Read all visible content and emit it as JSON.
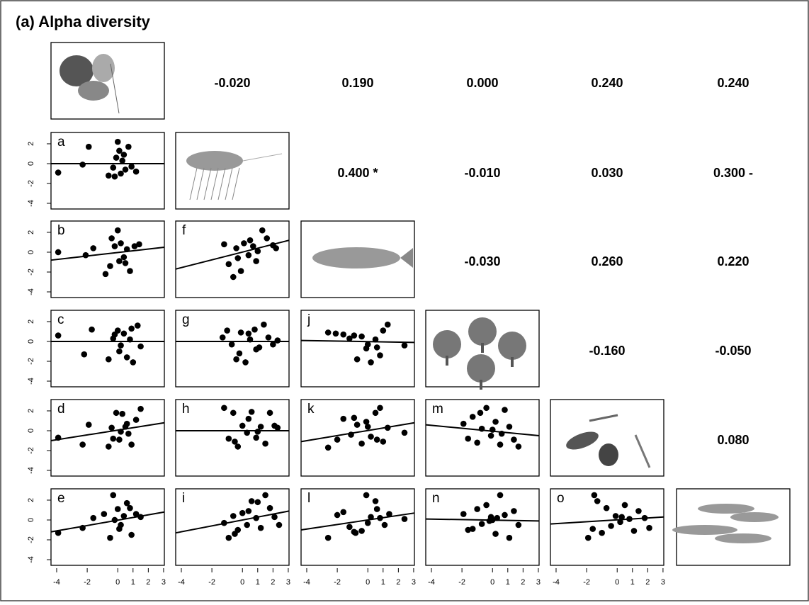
{
  "chart_data": {
    "type": "scatter",
    "title": "(a) Alpha diversity",
    "xlim": [
      -4.37,
      3.05
    ],
    "ylim": [
      -4.57,
      3.14
    ],
    "xticks": [
      -4,
      -2,
      0,
      1,
      2,
      3
    ],
    "yticks": [
      -4,
      -2,
      0,
      2
    ],
    "correlations": [
      -0.02,
      0.19,
      0.0,
      0.24,
      0.24,
      0.4,
      -0.01,
      0.03,
      0.3,
      -0.03,
      0.26,
      0.22,
      -0.16,
      -0.05,
      0.08
    ],
    "value_labels": [
      "-0.020",
      "0.190",
      "0.000",
      "0.240",
      "0.240",
      "0.400 *",
      "-0.010",
      "0.030",
      "0.300 -",
      "-0.030",
      "0.260",
      "0.220",
      "-0.160",
      "-0.050",
      "0.080"
    ],
    "panels": [
      {
        "label": "a",
        "x": [
          -3.9,
          -2.3,
          -1.9,
          -0.6,
          -0.3,
          -0.1,
          0,
          0.1,
          0.2,
          0.3,
          0.5,
          0.7,
          0.9,
          1.2,
          0.4,
          -0.2
        ],
        "y": [
          -0.9,
          -0.1,
          1.7,
          -1.2,
          -0.4,
          0.6,
          2.2,
          1.3,
          -1,
          0.3,
          -0.6,
          1.7,
          -0.3,
          -0.8,
          0.9,
          -1.3
        ],
        "fit": [
          0,
          0
        ]
      },
      {
        "label": "b",
        "x": [
          -3.9,
          -2.1,
          -1.6,
          -0.8,
          -0.5,
          -0.2,
          0,
          0.2,
          0.4,
          0.6,
          0.8,
          1.1,
          1.4,
          0.1,
          -0.4,
          0.5
        ],
        "y": [
          0,
          -0.3,
          0.4,
          -2.2,
          -1.4,
          0.6,
          2.2,
          0.9,
          -0.5,
          0.3,
          -1.9,
          0.6,
          0.8,
          -0.9,
          1.4,
          -1.1
        ],
        "fit": [
          -0.8,
          0.5
        ]
      },
      {
        "label": "c",
        "x": [
          -3.9,
          -2.2,
          -1.7,
          -0.6,
          -0.3,
          0,
          0.2,
          0.4,
          0.6,
          0.8,
          1,
          1.3,
          1.5,
          0.1,
          -0.2,
          0.9
        ],
        "y": [
          0.6,
          -1.3,
          1.2,
          -1.8,
          0.3,
          1.1,
          -0.4,
          0.8,
          -1.6,
          0.2,
          -2.1,
          1.6,
          -0.5,
          -1,
          0.7,
          1.3
        ],
        "fit": [
          0,
          0
        ]
      },
      {
        "label": "d",
        "x": [
          -3.9,
          -2.3,
          -1.9,
          -0.6,
          -0.4,
          -0.1,
          0.1,
          0.3,
          0.5,
          0.7,
          0.9,
          1.2,
          1.5,
          0.2,
          -0.3,
          0.6
        ],
        "y": [
          -0.7,
          -1.4,
          0.6,
          -1.6,
          0.3,
          1.8,
          -0.9,
          1.7,
          0.4,
          -0.3,
          -1.4,
          1.1,
          2.2,
          -0.1,
          -0.8,
          0.7
        ],
        "fit": [
          -1.0,
          0.8
        ]
      },
      {
        "label": "e",
        "x": [
          -3.9,
          -2.3,
          -1.6,
          -0.9,
          -0.5,
          -0.3,
          0,
          0.2,
          0.4,
          0.6,
          0.9,
          1.2,
          1.5,
          0.1,
          -0.2,
          0.8
        ],
        "y": [
          -1.3,
          -0.8,
          0.2,
          0.6,
          -1.8,
          2.5,
          1.1,
          -0.5,
          0.4,
          1.7,
          -1.5,
          0.6,
          0.3,
          -0.9,
          0,
          1.2
        ],
        "fit": [
          -1.2,
          0.8
        ]
      },
      {
        "label": "f",
        "x": [
          -1.2,
          -0.9,
          -0.6,
          -0.4,
          -0.1,
          0.1,
          0.4,
          0.7,
          1,
          1.3,
          1.6,
          2,
          2.2,
          -0.3,
          0.5,
          0.9
        ],
        "y": [
          0.8,
          -1.2,
          -2.5,
          0.4,
          -1.9,
          0.9,
          -0.3,
          0.6,
          0.1,
          2.2,
          1.4,
          0.7,
          0.4,
          -0.6,
          1.2,
          -0.9
        ],
        "fit": [
          -1.7,
          1.2
        ]
      },
      {
        "label": "g",
        "x": [
          -1.3,
          -1,
          -0.7,
          -0.4,
          -0.1,
          0.2,
          0.5,
          0.8,
          1.1,
          1.4,
          1.7,
          2,
          2.3,
          -0.2,
          0.4,
          0.9
        ],
        "y": [
          0.4,
          1.1,
          -0.3,
          -1.8,
          0.9,
          -2.1,
          0.2,
          1.2,
          -0.6,
          1.7,
          0.4,
          -0.3,
          0.1,
          -1.2,
          0.8,
          -0.8
        ],
        "fit": [
          0,
          0
        ]
      },
      {
        "label": "h",
        "x": [
          -1.2,
          -0.9,
          -0.6,
          -0.3,
          0,
          0.3,
          0.6,
          0.9,
          1.2,
          1.5,
          1.8,
          2.1,
          2.3,
          -0.5,
          0.4,
          1
        ],
        "y": [
          2.3,
          -0.8,
          1.8,
          -1.6,
          0.5,
          -0.2,
          1.9,
          -0.7,
          0.4,
          -1.3,
          1.8,
          0.5,
          0.3,
          -1.1,
          1.2,
          -0.1
        ],
        "fit": [
          0,
          0
        ]
      },
      {
        "label": "i",
        "x": [
          -1.2,
          -0.9,
          -0.6,
          -0.3,
          0,
          0.3,
          0.6,
          0.9,
          1.2,
          1.5,
          1.8,
          2.1,
          2.4,
          -0.5,
          0.4,
          1
        ],
        "y": [
          -0.3,
          -1.8,
          0.4,
          -1,
          0.7,
          -0.5,
          1.9,
          0.2,
          -0.8,
          2.5,
          1.2,
          0.3,
          -0.5,
          -1.4,
          0.9,
          1.8
        ],
        "fit": [
          -1.3,
          0.9
        ]
      },
      {
        "label": "j",
        "x": [
          -2.6,
          -2.1,
          -1.6,
          -1.2,
          -0.7,
          -0.4,
          -0.1,
          0.2,
          0.5,
          0.8,
          1,
          1.3,
          2.4,
          0,
          0.6,
          -0.9
        ],
        "y": [
          0.9,
          0.8,
          0.7,
          0.3,
          -1.8,
          0.5,
          -0.7,
          -2.1,
          0.2,
          -1.4,
          1.1,
          1.7,
          -0.4,
          -0.3,
          -0.6,
          0.6
        ],
        "fit": [
          0.1,
          -0.1
        ]
      },
      {
        "label": "k",
        "x": [
          -2.6,
          -2,
          -1.6,
          -1.1,
          -0.7,
          -0.4,
          -0.1,
          0.2,
          0.5,
          0.8,
          1,
          1.3,
          2.4,
          0,
          0.6,
          -0.9
        ],
        "y": [
          -1.7,
          -0.9,
          1.2,
          -0.4,
          0.6,
          -1.3,
          0.9,
          -0.6,
          1.8,
          2.3,
          -1.1,
          0.3,
          -0.2,
          0.4,
          -0.9,
          1.3
        ],
        "fit": [
          -1.1,
          0.8
        ]
      },
      {
        "label": "l",
        "x": [
          -2.6,
          -2,
          -1.6,
          -1.2,
          -0.8,
          -0.4,
          -0.1,
          0.2,
          0.5,
          0.8,
          1.1,
          1.4,
          2.4,
          0,
          0.6,
          -0.9
        ],
        "y": [
          -1.8,
          0.5,
          0.8,
          -0.7,
          -1.3,
          -1.1,
          2.5,
          0.3,
          1.9,
          0.2,
          -0.5,
          0.6,
          0.1,
          -0.3,
          1.1,
          -1.2
        ],
        "fit": [
          -1.0,
          0.7
        ]
      },
      {
        "label": "m",
        "x": [
          -1.9,
          -1.6,
          -1.3,
          -1,
          -0.7,
          -0.4,
          -0.1,
          0.2,
          0.5,
          0.8,
          1.1,
          1.4,
          1.7,
          0,
          0.6,
          -0.8
        ],
        "y": [
          0.7,
          -0.8,
          1.4,
          -1.2,
          0.2,
          2.3,
          -0.5,
          0.9,
          -1.4,
          2.1,
          0.4,
          -0.9,
          -1.6,
          0.1,
          -0.3,
          1.8
        ],
        "fit": [
          0.6,
          -0.5
        ]
      },
      {
        "label": "n",
        "x": [
          -1.9,
          -1.6,
          -1.3,
          -1,
          -0.7,
          -0.4,
          -0.1,
          0.2,
          0.5,
          0.8,
          1.1,
          1.4,
          1.7,
          0,
          0.3,
          -0.2
        ],
        "y": [
          0.6,
          -1,
          -0.9,
          1.1,
          -0.4,
          1.5,
          0.3,
          -1.4,
          2.5,
          0.5,
          -1.8,
          0.9,
          -0.5,
          0,
          0.2,
          -0.1
        ],
        "fit": [
          0.1,
          -0.1
        ]
      },
      {
        "label": "o",
        "x": [
          -1.9,
          -1.6,
          -1.3,
          -1,
          -0.7,
          -0.4,
          -0.1,
          0.2,
          0.5,
          0.8,
          1.1,
          1.4,
          1.8,
          2.1,
          0.3,
          -1.5
        ],
        "y": [
          -1.8,
          -0.9,
          1.9,
          -1.3,
          1.2,
          -0.6,
          0.4,
          -0.2,
          1.5,
          0.1,
          -1.1,
          0.9,
          0.2,
          -0.8,
          0.3,
          2.5
        ],
        "fit": [
          -0.4,
          0.3
        ]
      }
    ]
  }
}
